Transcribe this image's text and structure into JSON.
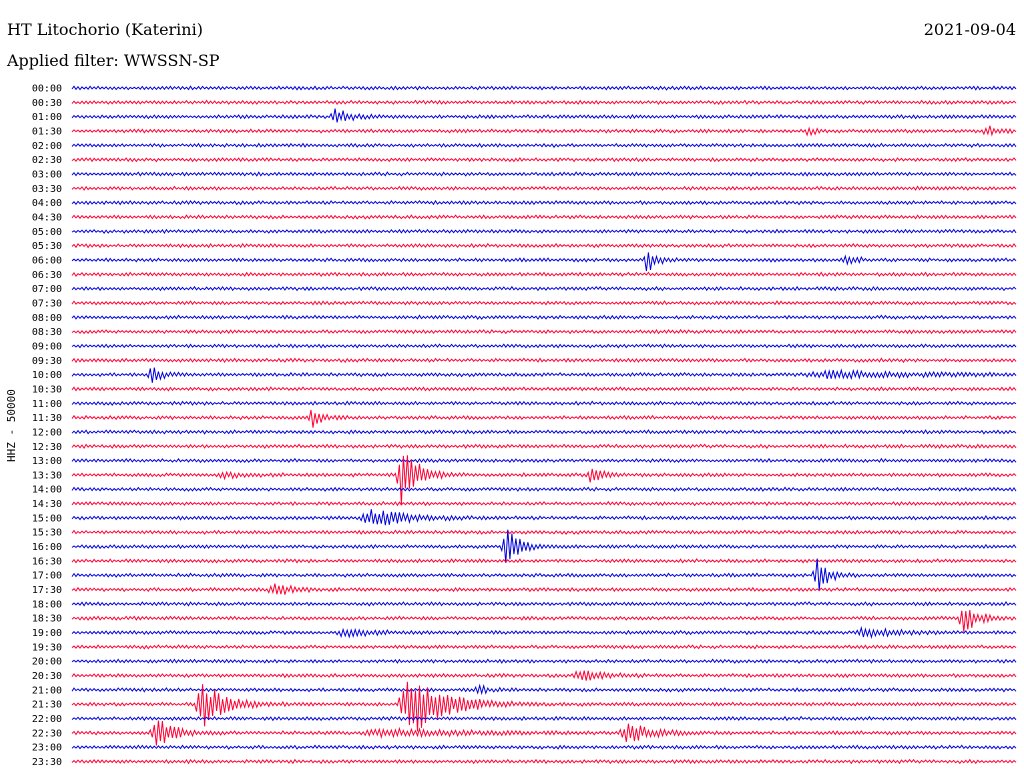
{
  "header": {
    "station": "HT Litochorio (Katerini)",
    "date": "2021-09-04",
    "filter": "Applied filter: WWSSN-SP"
  },
  "chart_data": {
    "type": "line",
    "title": "HT Litochorio (Katerini)",
    "subtitle": "Applied filter: WWSSN-SP",
    "ylabel": "HHZ - 50000",
    "xlabel": "",
    "grid": false,
    "colors": {
      "even_trace": "#0000dd",
      "odd_trace": "#ff0033"
    },
    "rows": [
      "00:00",
      "00:30",
      "01:00",
      "01:30",
      "02:00",
      "02:30",
      "03:00",
      "03:30",
      "04:00",
      "04:30",
      "05:00",
      "05:30",
      "06:00",
      "06:30",
      "07:00",
      "07:30",
      "08:00",
      "08:30",
      "09:00",
      "09:30",
      "10:00",
      "10:30",
      "11:00",
      "11:30",
      "12:00",
      "12:30",
      "13:00",
      "13:30",
      "14:00",
      "14:30",
      "15:00",
      "15:30",
      "16:00",
      "16:30",
      "17:00",
      "17:30",
      "18:00",
      "18:30",
      "19:00",
      "19:30",
      "20:00",
      "20:30",
      "21:00",
      "21:30",
      "22:00",
      "22:30",
      "23:00",
      "23:30"
    ],
    "events": [
      {
        "row": 2,
        "pos": 0.28,
        "amp": 0.7,
        "width": 0.012
      },
      {
        "row": 3,
        "pos": 0.78,
        "amp": 0.4,
        "width": 0.006
      },
      {
        "row": 3,
        "pos": 0.97,
        "amp": 0.4,
        "width": 0.012
      },
      {
        "row": 12,
        "pos": 0.61,
        "amp": 1.2,
        "width": 0.008
      },
      {
        "row": 12,
        "pos": 0.82,
        "amp": 0.6,
        "width": 0.008
      },
      {
        "row": 20,
        "pos": 0.085,
        "amp": 0.7,
        "width": 0.01
      },
      {
        "row": 20,
        "pos": 0.81,
        "amp": 0.3,
        "width": 0.08
      },
      {
        "row": 23,
        "pos": 0.255,
        "amp": 0.9,
        "width": 0.01
      },
      {
        "row": 27,
        "pos": 0.35,
        "amp": 2.8,
        "width": 0.014
      },
      {
        "row": 27,
        "pos": 0.55,
        "amp": 0.8,
        "width": 0.01
      },
      {
        "row": 27,
        "pos": 0.16,
        "amp": 0.35,
        "width": 0.015
      },
      {
        "row": 30,
        "pos": 0.32,
        "amp": 0.8,
        "width": 0.03
      },
      {
        "row": 32,
        "pos": 0.46,
        "amp": 2.2,
        "width": 0.01
      },
      {
        "row": 34,
        "pos": 0.79,
        "amp": 1.6,
        "width": 0.01
      },
      {
        "row": 35,
        "pos": 0.215,
        "amp": 0.6,
        "width": 0.015
      },
      {
        "row": 37,
        "pos": 0.945,
        "amp": 1.4,
        "width": 0.012
      },
      {
        "row": 38,
        "pos": 0.29,
        "amp": 0.4,
        "width": 0.02
      },
      {
        "row": 38,
        "pos": 0.84,
        "amp": 0.5,
        "width": 0.025
      },
      {
        "row": 41,
        "pos": 0.54,
        "amp": 0.5,
        "width": 0.02
      },
      {
        "row": 42,
        "pos": 0.43,
        "amp": 0.5,
        "width": 0.008
      },
      {
        "row": 43,
        "pos": 0.14,
        "amp": 2.0,
        "width": 0.02
      },
      {
        "row": 43,
        "pos": 0.36,
        "amp": 3.0,
        "width": 0.03
      },
      {
        "row": 45,
        "pos": 0.09,
        "amp": 1.6,
        "width": 0.015
      },
      {
        "row": 45,
        "pos": 0.59,
        "amp": 0.9,
        "width": 0.02
      },
      {
        "row": 45,
        "pos": 0.34,
        "amp": 0.3,
        "width": 0.08
      }
    ]
  }
}
